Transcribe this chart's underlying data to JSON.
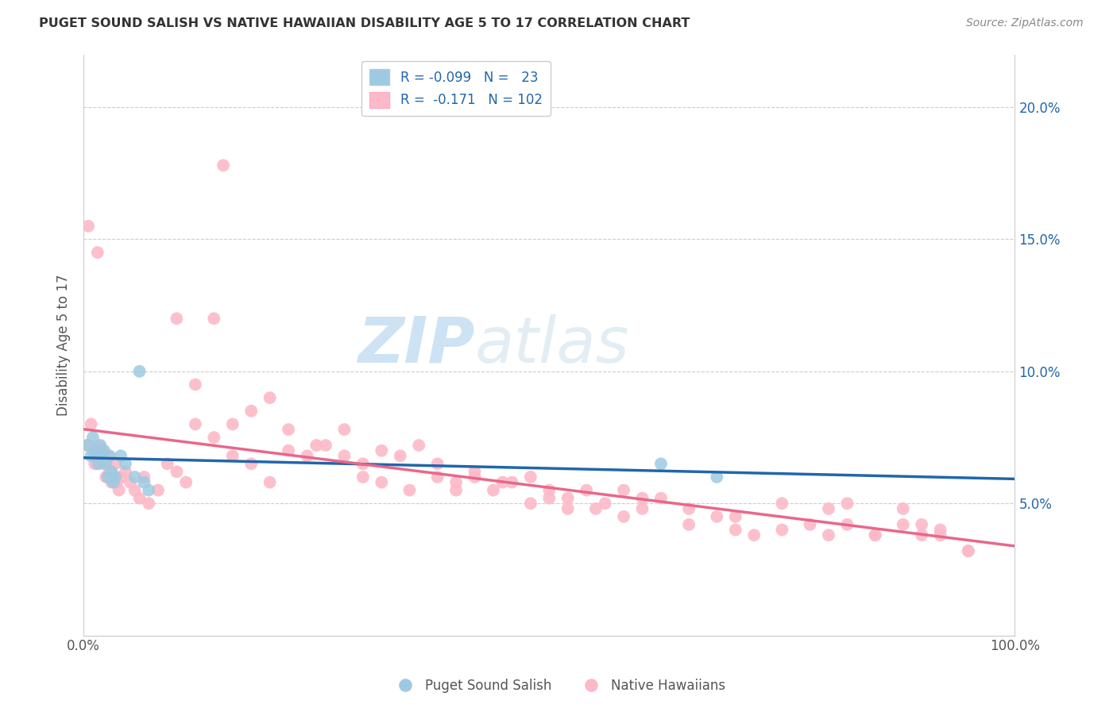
{
  "title": "PUGET SOUND SALISH VS NATIVE HAWAIIAN DISABILITY AGE 5 TO 17 CORRELATION CHART",
  "source": "Source: ZipAtlas.com",
  "ylabel": "Disability Age 5 to 17",
  "xlim": [
    0.0,
    1.0
  ],
  "ylim": [
    0.0,
    0.22
  ],
  "yticks": [
    0.05,
    0.1,
    0.15,
    0.2
  ],
  "ytick_labels": [
    "5.0%",
    "10.0%",
    "15.0%",
    "20.0%"
  ],
  "background_color": "#ffffff",
  "color_blue": "#9ecae1",
  "color_pink": "#fcb9c8",
  "trend_blue": "#2166ac",
  "trend_pink": "#e8678a",
  "watermark_color": "#cce5f5",
  "blue_x": [
    0.005,
    0.008,
    0.01,
    0.012,
    0.014,
    0.016,
    0.018,
    0.02,
    0.022,
    0.024,
    0.026,
    0.028,
    0.03,
    0.032,
    0.034,
    0.04,
    0.045,
    0.055,
    0.06,
    0.065,
    0.07,
    0.62,
    0.68
  ],
  "blue_y": [
    0.072,
    0.068,
    0.075,
    0.07,
    0.068,
    0.065,
    0.072,
    0.068,
    0.07,
    0.065,
    0.06,
    0.068,
    0.062,
    0.058,
    0.06,
    0.068,
    0.065,
    0.06,
    0.1,
    0.058,
    0.055,
    0.065,
    0.06
  ],
  "pink_x": [
    0.003,
    0.005,
    0.008,
    0.01,
    0.012,
    0.014,
    0.015,
    0.016,
    0.018,
    0.02,
    0.022,
    0.024,
    0.026,
    0.028,
    0.03,
    0.032,
    0.034,
    0.036,
    0.038,
    0.04,
    0.045,
    0.05,
    0.055,
    0.06,
    0.065,
    0.07,
    0.08,
    0.09,
    0.1,
    0.11,
    0.12,
    0.14,
    0.16,
    0.18,
    0.2,
    0.22,
    0.25,
    0.28,
    0.3,
    0.32,
    0.35,
    0.38,
    0.4,
    0.42,
    0.45,
    0.48,
    0.5,
    0.52,
    0.55,
    0.58,
    0.6,
    0.65,
    0.7,
    0.75,
    0.8,
    0.82,
    0.85,
    0.88,
    0.9,
    0.92,
    0.95,
    0.1,
    0.12,
    0.14,
    0.15,
    0.16,
    0.18,
    0.2,
    0.22,
    0.24,
    0.26,
    0.28,
    0.3,
    0.32,
    0.34,
    0.36,
    0.38,
    0.4,
    0.42,
    0.44,
    0.46,
    0.48,
    0.5,
    0.52,
    0.54,
    0.56,
    0.58,
    0.6,
    0.62,
    0.65,
    0.68,
    0.7,
    0.72,
    0.75,
    0.78,
    0.8,
    0.82,
    0.85,
    0.88,
    0.9,
    0.92,
    0.95
  ],
  "pink_y": [
    0.072,
    0.155,
    0.08,
    0.07,
    0.065,
    0.065,
    0.145,
    0.072,
    0.068,
    0.07,
    0.065,
    0.06,
    0.068,
    0.062,
    0.058,
    0.06,
    0.065,
    0.058,
    0.055,
    0.06,
    0.062,
    0.058,
    0.055,
    0.052,
    0.06,
    0.05,
    0.055,
    0.065,
    0.062,
    0.058,
    0.08,
    0.075,
    0.068,
    0.065,
    0.058,
    0.07,
    0.072,
    0.068,
    0.06,
    0.058,
    0.055,
    0.06,
    0.055,
    0.062,
    0.058,
    0.05,
    0.055,
    0.052,
    0.048,
    0.055,
    0.052,
    0.048,
    0.045,
    0.05,
    0.048,
    0.042,
    0.038,
    0.048,
    0.042,
    0.038,
    0.032,
    0.12,
    0.095,
    0.12,
    0.178,
    0.08,
    0.085,
    0.09,
    0.078,
    0.068,
    0.072,
    0.078,
    0.065,
    0.07,
    0.068,
    0.072,
    0.065,
    0.058,
    0.06,
    0.055,
    0.058,
    0.06,
    0.052,
    0.048,
    0.055,
    0.05,
    0.045,
    0.048,
    0.052,
    0.042,
    0.045,
    0.04,
    0.038,
    0.04,
    0.042,
    0.038,
    0.05,
    0.038,
    0.042,
    0.038,
    0.04,
    0.032
  ]
}
